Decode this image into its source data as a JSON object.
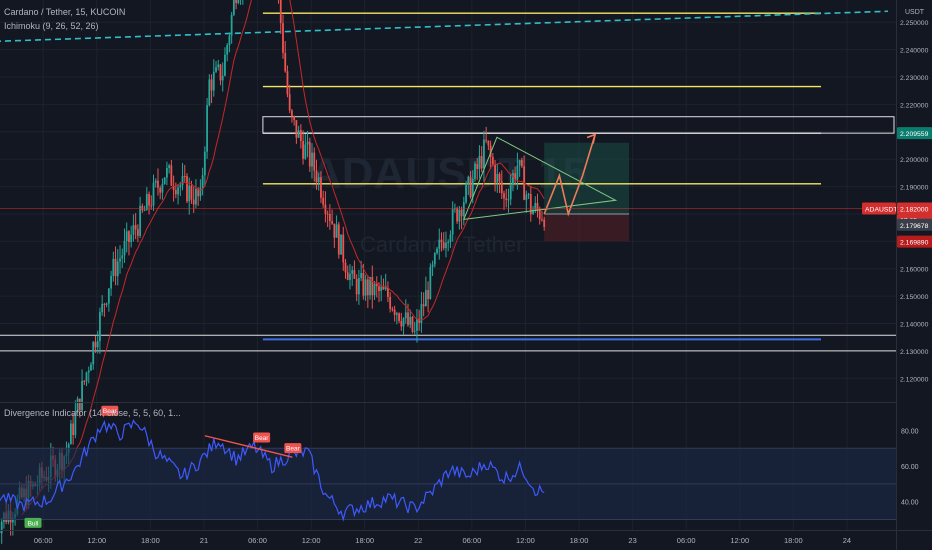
{
  "header": {
    "symbol_title": "Cardano / Tether, 15, KUCOIN",
    "ichimoku_legend": "Ichimoku (9, 26, 52, 26)",
    "divergence_legend": "Divergence Indicator (14, close, 5, 5, 60, 1..."
  },
  "axis": {
    "currency": "USDT",
    "price_ticks": [
      "2.250000",
      "2.240000",
      "2.230000",
      "2.220000",
      "2.210000",
      "2.200000",
      "2.190000",
      "2.180000",
      "2.170000",
      "2.160000",
      "2.150000",
      "2.140000",
      "2.130000",
      "2.120000"
    ],
    "osc_ticks": [
      "80.00",
      "60.00",
      "40.00"
    ],
    "time_ticks": [
      "20",
      "06:00",
      "12:00",
      "18:00",
      "21",
      "06:00",
      "12:00",
      "18:00",
      "22",
      "06:00",
      "12:00",
      "18:00",
      "23",
      "06:00",
      "12:00",
      "18:00",
      "24"
    ]
  },
  "price_labels": {
    "resistance": "2.209559",
    "symbol": "ADAUSDT",
    "last_price": "2.182000",
    "countdown": "07:25",
    "bid": "2.179678",
    "stop": "2.169890"
  },
  "watermark": {
    "symbol": "ADAUSDT",
    "interval": "15",
    "name": "Cardano / Tether"
  },
  "divergence_labels": [
    "Bull",
    "Bear",
    "Bear",
    "Bear"
  ],
  "colors": {
    "background": "#131722",
    "up": "#26a69a",
    "down": "#ef5350",
    "level": "#f5e663",
    "box": "#e0e0e0",
    "support": "#3b6fe0",
    "trend": "#2fbfc9",
    "triangle": "#7fc97f",
    "projection": "#f07a5a",
    "oscillator": "#3d5afe"
  },
  "chart_data": [
    {
      "type": "candlestick",
      "title": "Cardano / Tether, 15, KUCOIN",
      "ylim": [
        2.115,
        2.253
      ],
      "x_ticks": [
        "20",
        "06:00",
        "12:00",
        "18:00",
        "21",
        "06:00",
        "12:00",
        "18:00",
        "22",
        "06:00",
        "12:00",
        "18:00",
        "23",
        "06:00",
        "12:00",
        "18:00",
        "24"
      ],
      "price_path": [
        {
          "t": 0,
          "p": 2.066
        },
        {
          "t": 8,
          "p": 2.093
        },
        {
          "t": 13,
          "p": 2.158
        },
        {
          "t": 19,
          "p": 2.195
        },
        {
          "t": 23,
          "p": 2.185
        },
        {
          "t": 24,
          "p": 2.228
        },
        {
          "t": 25.5,
          "p": 2.232
        },
        {
          "t": 27,
          "p": 2.262
        },
        {
          "t": 31,
          "p": 2.285
        },
        {
          "t": 33,
          "p": 2.215
        },
        {
          "t": 36,
          "p": 2.195
        },
        {
          "t": 40,
          "p": 2.155
        },
        {
          "t": 44,
          "p": 2.15
        },
        {
          "t": 47,
          "p": 2.136
        },
        {
          "t": 50,
          "p": 2.17
        },
        {
          "t": 53.5,
          "p": 2.192
        },
        {
          "t": 55,
          "p": 2.205
        },
        {
          "t": 57,
          "p": 2.185
        },
        {
          "t": 58.5,
          "p": 2.198
        },
        {
          "t": 60,
          "p": 2.182
        },
        {
          "t": 61.5,
          "p": 2.18
        }
      ],
      "horizontal_levels": [
        {
          "price": 2.2533,
          "style": "yellow"
        },
        {
          "price": 2.2265,
          "style": "yellow"
        },
        {
          "price": 2.2095,
          "style": "white-box",
          "box_top": 2.2155
        },
        {
          "price": 2.191,
          "style": "yellow"
        },
        {
          "price": 2.1342,
          "style": "blue"
        },
        {
          "price": 2.1357,
          "style": "white"
        },
        {
          "price": 2.13,
          "style": "white"
        }
      ],
      "trendline": [
        {
          "t": 0,
          "p": 2.243
        },
        {
          "t": 100,
          "p": 2.254
        }
      ],
      "triangle": [
        [
          52.5,
          2.178
        ],
        [
          56.2,
          2.208
        ],
        [
          69.5,
          2.185
        ]
      ],
      "projection_path": [
        [
          61.5,
          2.18
        ],
        [
          63.2,
          2.194
        ],
        [
          64.2,
          2.18
        ],
        [
          65.8,
          2.194
        ],
        [
          67.2,
          2.209
        ]
      ],
      "position_box": {
        "t_start": 61.5,
        "t_end": 71,
        "entry": 2.18,
        "target": 2.206,
        "stop": 2.17
      }
    },
    {
      "type": "line",
      "title": "Divergence Indicator (14, close, 5, 5, 60, 1...",
      "ylim": [
        27.5,
        92
      ],
      "upper_band": 70,
      "mid_band": 50,
      "lower_band": 30,
      "oscillator": [
        {
          "t": 0,
          "v": 44
        },
        {
          "t": 3,
          "v": 38
        },
        {
          "t": 6,
          "v": 41
        },
        {
          "t": 9,
          "v": 58
        },
        {
          "t": 12,
          "v": 84
        },
        {
          "t": 14,
          "v": 78
        },
        {
          "t": 16,
          "v": 85
        },
        {
          "t": 18,
          "v": 68
        },
        {
          "t": 21,
          "v": 54
        },
        {
          "t": 23,
          "v": 63
        },
        {
          "t": 25,
          "v": 75
        },
        {
          "t": 27,
          "v": 64
        },
        {
          "t": 29,
          "v": 71
        },
        {
          "t": 31,
          "v": 60
        },
        {
          "t": 33,
          "v": 66
        },
        {
          "t": 35,
          "v": 68
        },
        {
          "t": 37,
          "v": 44
        },
        {
          "t": 39,
          "v": 34
        },
        {
          "t": 41,
          "v": 37
        },
        {
          "t": 44,
          "v": 42
        },
        {
          "t": 47,
          "v": 36
        },
        {
          "t": 49,
          "v": 46
        },
        {
          "t": 51,
          "v": 58
        },
        {
          "t": 53,
          "v": 54
        },
        {
          "t": 55,
          "v": 62
        },
        {
          "t": 57,
          "v": 53
        },
        {
          "t": 59,
          "v": 59
        },
        {
          "t": 60.5,
          "v": 47
        },
        {
          "t": 61.5,
          "v": 45
        }
      ],
      "divergences": [
        {
          "label": "Bull",
          "t": 4.2,
          "v": 36
        },
        {
          "label": "Bear",
          "t": 12.8,
          "v": 86
        },
        {
          "label": "Bear",
          "t": 29.8,
          "v": 71
        },
        {
          "label": "Bear",
          "t": 33.3,
          "v": 65
        }
      ]
    }
  ]
}
